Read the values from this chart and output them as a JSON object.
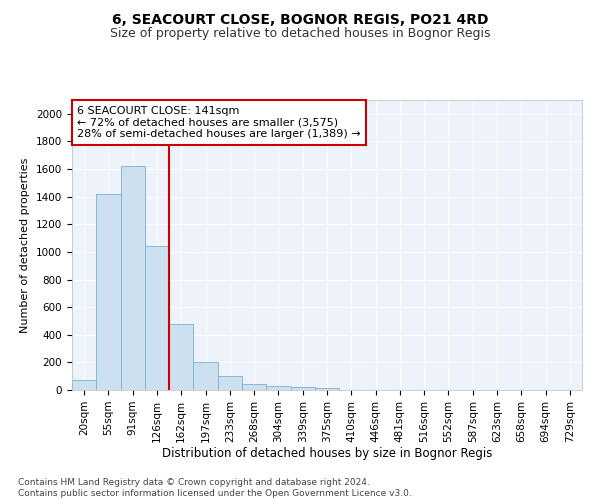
{
  "title": "6, SEACOURT CLOSE, BOGNOR REGIS, PO21 4RD",
  "subtitle": "Size of property relative to detached houses in Bognor Regis",
  "xlabel": "Distribution of detached houses by size in Bognor Regis",
  "ylabel": "Number of detached properties",
  "categories": [
    "20sqm",
    "55sqm",
    "91sqm",
    "126sqm",
    "162sqm",
    "197sqm",
    "233sqm",
    "268sqm",
    "304sqm",
    "339sqm",
    "375sqm",
    "410sqm",
    "446sqm",
    "481sqm",
    "516sqm",
    "552sqm",
    "587sqm",
    "623sqm",
    "658sqm",
    "694sqm",
    "729sqm"
  ],
  "values": [
    75,
    1420,
    1620,
    1040,
    480,
    200,
    100,
    45,
    30,
    20,
    15,
    0,
    0,
    0,
    0,
    0,
    0,
    0,
    0,
    0,
    0
  ],
  "bar_color": "#cce0f0",
  "bar_edge_color": "#7bafd4",
  "vline_color": "#cc0000",
  "annotation_text": "6 SEACOURT CLOSE: 141sqm\n← 72% of detached houses are smaller (3,575)\n28% of semi-detached houses are larger (1,389) →",
  "annotation_box_color": "#ffffff",
  "annotation_box_edge": "#cc0000",
  "ylim": [
    0,
    2100
  ],
  "yticks": [
    0,
    200,
    400,
    600,
    800,
    1000,
    1200,
    1400,
    1600,
    1800,
    2000
  ],
  "bg_color": "#ffffff",
  "plot_bg_color": "#edf2fb",
  "grid_color": "#ffffff",
  "footer": "Contains HM Land Registry data © Crown copyright and database right 2024.\nContains public sector information licensed under the Open Government Licence v3.0.",
  "title_fontsize": 10,
  "subtitle_fontsize": 9,
  "xlabel_fontsize": 8.5,
  "ylabel_fontsize": 8,
  "tick_fontsize": 7.5,
  "footer_fontsize": 6.5,
  "annotation_fontsize": 8
}
